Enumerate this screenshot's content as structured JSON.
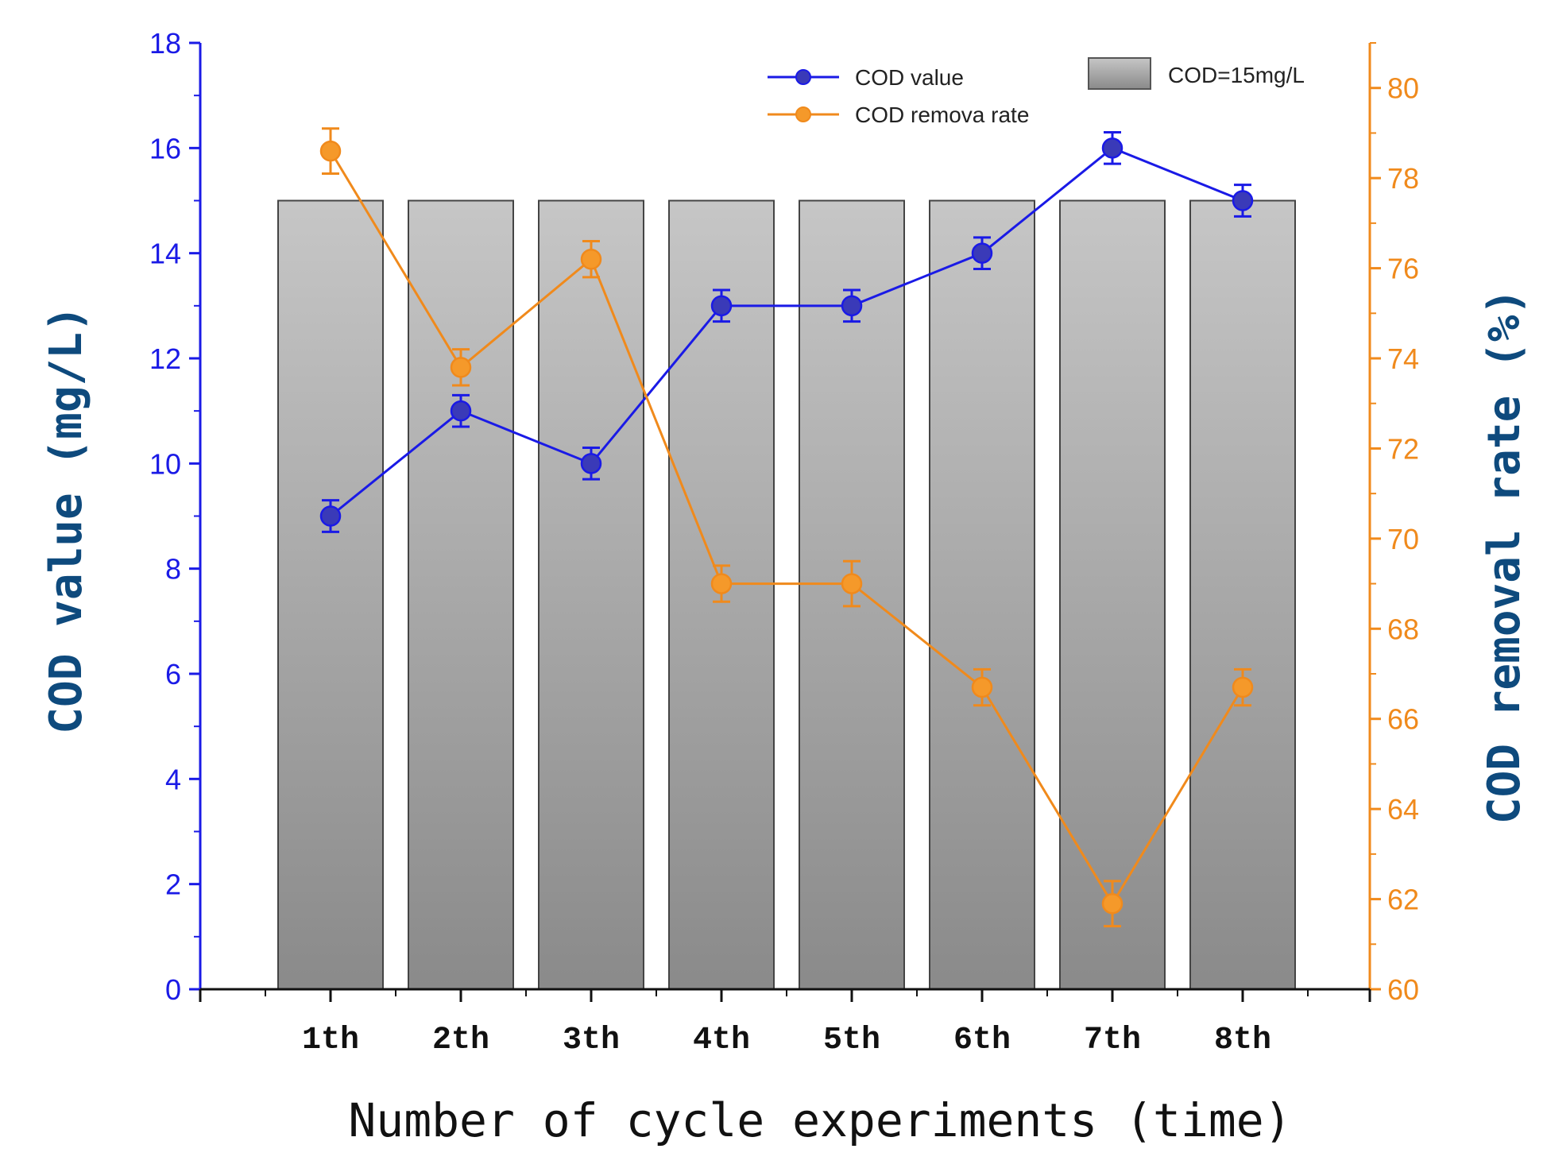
{
  "chart_data": {
    "type": "bar",
    "categories": [
      "1th",
      "2th",
      "3th",
      "4th",
      "5th",
      "6th",
      "7th",
      "8th"
    ],
    "xlabel": "Number of cycle experiments (time)",
    "ylabel_left": "COD value (mg/L)",
    "ylabel_right": "COD removal rate (%)",
    "ylim_left": [
      0,
      18
    ],
    "ylim_right": [
      60,
      81
    ],
    "yticks_left": [
      0,
      2,
      4,
      6,
      8,
      10,
      12,
      14,
      16,
      18
    ],
    "yticks_right": [
      60,
      62,
      64,
      66,
      68,
      70,
      72,
      74,
      76,
      78,
      80
    ],
    "bars": {
      "name": "COD=15mg/L",
      "values": [
        15,
        15,
        15,
        15,
        15,
        15,
        15,
        15
      ],
      "color": "#9a9a9a"
    },
    "series": [
      {
        "name": "COD value",
        "axis": "left",
        "type": "line",
        "color": "#1a1ae6",
        "values": [
          9,
          11,
          10,
          13,
          13,
          14,
          16,
          15
        ],
        "error": [
          0.3,
          0.3,
          0.3,
          0.3,
          0.3,
          0.3,
          0.3,
          0.3
        ]
      },
      {
        "name": "COD remova rate",
        "axis": "right",
        "type": "line",
        "color": "#f08a1c",
        "values": [
          78.6,
          73.8,
          76.2,
          69.0,
          69.0,
          66.7,
          61.9,
          66.7
        ],
        "error": [
          0.5,
          0.4,
          0.4,
          0.4,
          0.5,
          0.4,
          0.5,
          0.4
        ]
      }
    ],
    "legend": "top-right",
    "grid": false
  }
}
